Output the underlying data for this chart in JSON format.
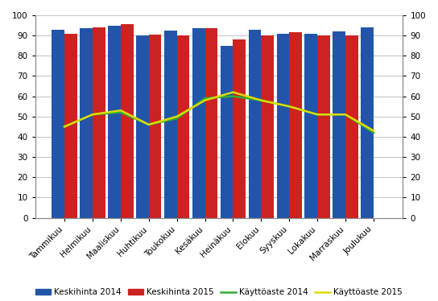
{
  "months": [
    "Tammikuu",
    "Helmikuu",
    "Maaliskuu",
    "Huhtikuu",
    "Toukokuu",
    "Kesäkuu",
    "Heinäkuu",
    "Elokuu",
    "Syyskuu",
    "Lokakuu",
    "Marraskuu",
    "Joulukuu"
  ],
  "keskihinta_2014": [
    93,
    93.5,
    95,
    90,
    92.5,
    93.5,
    85,
    93,
    91,
    91,
    92,
    94
  ],
  "keskihinta_2015": [
    91,
    94,
    95.5,
    90.5,
    90,
    93.5,
    88,
    90,
    91.5,
    90,
    90,
    0
  ],
  "kayttoaste_2014": [
    45,
    51,
    52,
    46,
    49,
    59,
    60,
    58,
    55,
    51,
    51,
    42
  ],
  "kayttoaste_2015": [
    45,
    51,
    53,
    46,
    50,
    58,
    62,
    58,
    55,
    51,
    51,
    43
  ],
  "bar_color_2014": "#2255AA",
  "bar_color_2015": "#CC2222",
  "line_color_2014": "#33AA33",
  "line_color_2015": "#DDDD00",
  "ylim": [
    0,
    100
  ],
  "yticks": [
    0,
    10,
    20,
    30,
    40,
    50,
    60,
    70,
    80,
    90,
    100
  ],
  "legend_labels": [
    "Keskihinta 2014",
    "Keskihinta 2015",
    "Käyttöaste 2014",
    "Käyttöaste 2015"
  ],
  "bar_width": 0.45,
  "figsize": [
    5.44,
    3.74
  ],
  "dpi": 100,
  "grid_color": "#AAAAAA",
  "background_color": "#FFFFFF",
  "legend_fontsize": 7.5,
  "tick_fontsize": 7.5
}
